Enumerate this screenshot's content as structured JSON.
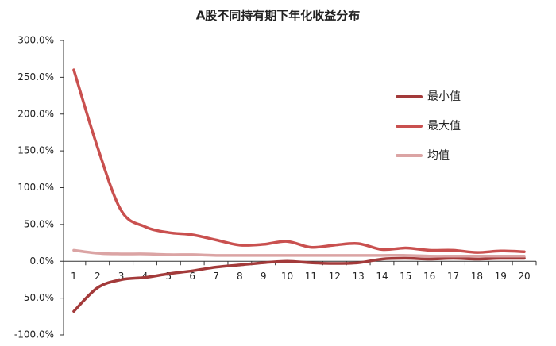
{
  "chart_data": {
    "type": "line",
    "title": "A股不同持有期下年化收益分布",
    "categories": [
      "1",
      "2",
      "3",
      "4",
      "5",
      "6",
      "7",
      "8",
      "9",
      "10",
      "11",
      "12",
      "13",
      "14",
      "15",
      "16",
      "17",
      "18",
      "19",
      "20"
    ],
    "series": [
      {
        "name": "最小值",
        "color": "#a33a3a",
        "values": [
          -68,
          -36,
          -25,
          -22,
          -17,
          -13,
          -8,
          -5,
          -2,
          0,
          -2,
          -3,
          -2,
          3,
          4,
          3,
          4,
          3,
          4,
          4
        ]
      },
      {
        "name": "最大值",
        "color": "#c9504f",
        "values": [
          260,
          155,
          69,
          47,
          39,
          36,
          29,
          22,
          23,
          27,
          19,
          22,
          24,
          16,
          18,
          15,
          15,
          12,
          14,
          13
        ]
      },
      {
        "name": "均值",
        "color": "#dba4a4",
        "values": [
          15,
          11,
          10,
          10,
          9,
          9,
          8,
          8,
          8,
          8,
          8,
          8,
          8,
          8,
          8,
          7,
          7,
          7,
          7,
          7
        ]
      }
    ],
    "ylim": [
      -100,
      300
    ],
    "yticks": [
      {
        "value": -100,
        "label": "-100.0%"
      },
      {
        "value": -50,
        "label": "-50.0%"
      },
      {
        "value": 0,
        "label": "0.0%"
      },
      {
        "value": 50,
        "label": "50.0%"
      },
      {
        "value": 100,
        "label": "100.0%"
      },
      {
        "value": 150,
        "label": "150.0%"
      },
      {
        "value": 200,
        "label": "200.0%"
      },
      {
        "value": 250,
        "label": "250.0%"
      },
      {
        "value": 300,
        "label": "300.0%"
      }
    ],
    "grid": false,
    "legend": "right"
  }
}
